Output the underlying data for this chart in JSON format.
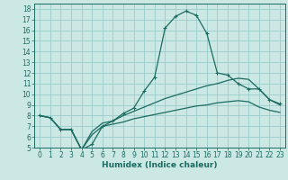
{
  "title": "",
  "xlabel": "Humidex (Indice chaleur)",
  "bg_color": "#cce8e4",
  "grid_color": "#99cccc",
  "line_color": "#1a6b60",
  "xlim": [
    -0.5,
    23.5
  ],
  "ylim": [
    5,
    18.5
  ],
  "xticks": [
    0,
    1,
    2,
    3,
    4,
    5,
    6,
    7,
    8,
    9,
    10,
    11,
    12,
    13,
    14,
    15,
    16,
    17,
    18,
    19,
    20,
    21,
    22,
    23
  ],
  "yticks": [
    5,
    6,
    7,
    8,
    9,
    10,
    11,
    12,
    13,
    14,
    15,
    16,
    17,
    18
  ],
  "line1_x": [
    0,
    1,
    2,
    3,
    4,
    5,
    6,
    7,
    8,
    9,
    10,
    11,
    12,
    13,
    14,
    15,
    16,
    17,
    18,
    19,
    20,
    21,
    22,
    23
  ],
  "line1_y": [
    8.0,
    7.8,
    6.7,
    6.7,
    4.8,
    5.3,
    7.0,
    7.5,
    8.2,
    8.7,
    10.3,
    11.6,
    16.2,
    17.3,
    17.8,
    17.4,
    15.7,
    12.0,
    11.8,
    11.0,
    10.5,
    10.5,
    9.5,
    9.1
  ],
  "line2_x": [
    0,
    1,
    2,
    3,
    4,
    5,
    6,
    7,
    8,
    9,
    10,
    11,
    12,
    13,
    14,
    15,
    16,
    17,
    18,
    19,
    20,
    21,
    22,
    23
  ],
  "line2_y": [
    8.0,
    7.8,
    6.7,
    6.7,
    4.8,
    6.5,
    7.3,
    7.5,
    8.0,
    8.4,
    8.8,
    9.2,
    9.6,
    9.9,
    10.2,
    10.5,
    10.8,
    11.0,
    11.3,
    11.5,
    11.4,
    10.5,
    9.5,
    9.0
  ],
  "line3_x": [
    0,
    1,
    2,
    3,
    4,
    5,
    6,
    7,
    8,
    9,
    10,
    11,
    12,
    13,
    14,
    15,
    16,
    17,
    18,
    19,
    20,
    21,
    22,
    23
  ],
  "line3_y": [
    8.0,
    7.8,
    6.7,
    6.7,
    4.8,
    6.2,
    7.0,
    7.2,
    7.4,
    7.7,
    7.9,
    8.1,
    8.3,
    8.5,
    8.7,
    8.9,
    9.0,
    9.2,
    9.3,
    9.4,
    9.3,
    8.8,
    8.5,
    8.3
  ],
  "marker": "+",
  "tick_fontsize": 5.5,
  "xlabel_fontsize": 6.5
}
